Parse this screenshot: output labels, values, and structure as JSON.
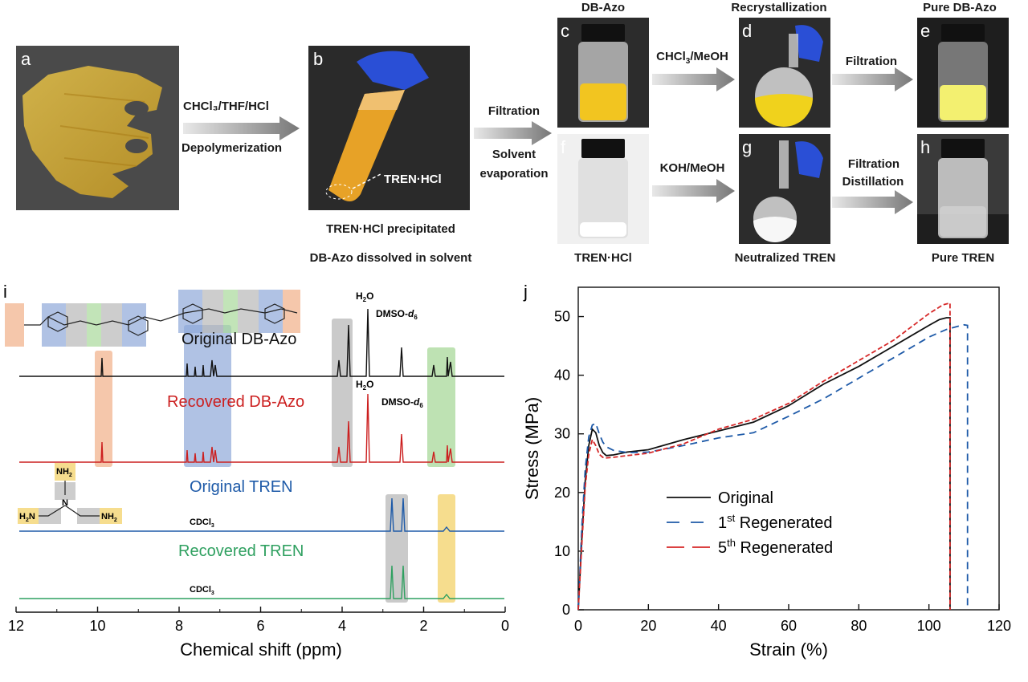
{
  "panels": {
    "a": {
      "letter": "a"
    },
    "b": {
      "letter": "b",
      "annotation": "TREN·HCl"
    },
    "c": {
      "letter": "c",
      "title": "DB-Azo"
    },
    "d": {
      "letter": "d",
      "title": "Recrystallization"
    },
    "e": {
      "letter": "e",
      "title": "Pure DB-Azo"
    },
    "f": {
      "letter": "f",
      "caption": "TREN·HCl"
    },
    "g": {
      "letter": "g",
      "caption": "Neutralized TREN"
    },
    "h": {
      "letter": "h",
      "caption": "Pure TREN"
    }
  },
  "arrows": {
    "a_to_b": {
      "top": "CHCl₃/THF/HCl",
      "bottom": "Depolymerization"
    },
    "b_to_cf": {
      "top": "Filtration",
      "bottom_1": "Solvent",
      "bottom_2": "evaporation"
    },
    "c_to_d": {
      "top": "CHCl",
      "top_sub": "3",
      "top_rest": "/MeOH"
    },
    "d_to_e": {
      "top": "Filtration"
    },
    "f_to_g": {
      "top": "KOH/MeOH"
    },
    "g_to_h": {
      "top_1": "Filtration",
      "top_2": "Distillation"
    }
  },
  "b_captions": {
    "line1": "TREN·HCl precipitated",
    "line2": "DB-Azo dissolved in solvent"
  },
  "nmr": {
    "panel_letter": "i",
    "xlabel": "Chemical shift (ppm)",
    "xticks": [
      "12",
      "10",
      "8",
      "6",
      "4",
      "2",
      "0"
    ],
    "spectra": [
      {
        "name": "Original DB-Azo",
        "color": "#111111"
      },
      {
        "name": "Recovered DB-Azo",
        "color": "#cc1f1f"
      },
      {
        "name": "Original TREN",
        "color": "#1e5aa8"
      },
      {
        "name": "Recovered TREN",
        "color": "#2fa060"
      }
    ],
    "solvent_labels": {
      "h2o": "H",
      "h2o_sub": "2",
      "h2o_rest": "O",
      "dmso": "DMSO-",
      "dmso_d": "d",
      "dmso_sub": "6",
      "cdcl3": "CDCl",
      "cdcl3_sub": "3"
    },
    "tren_labels": {
      "nh2": "NH",
      "nh2_sub": "2",
      "h2n": "H",
      "h2n_sub": "2",
      "h2n_rest": "N",
      "n": "N"
    },
    "highlight_colors": {
      "orange": "#f2b48f",
      "blue": "#8fa8d8",
      "grey": "#b8b8b8",
      "green": "#a8d89a",
      "yellow": "#f5d77a"
    }
  },
  "chart_data": {
    "type": "line",
    "panel_letter": "j",
    "xlabel": "Strain (%)",
    "ylabel": "Stress (MPa)",
    "xlim": [
      0,
      120
    ],
    "ylim": [
      0,
      55
    ],
    "xticks": [
      0,
      20,
      40,
      60,
      80,
      100,
      120
    ],
    "yticks": [
      0,
      10,
      20,
      30,
      40,
      50
    ],
    "legend_position": "center-left",
    "series": [
      {
        "name": "Original",
        "sup": "",
        "color": "#111111",
        "dash": "solid",
        "x": [
          0,
          1,
          2,
          3,
          4,
          5,
          6,
          7,
          8,
          10,
          14,
          20,
          30,
          40,
          50,
          60,
          70,
          80,
          90,
          100,
          103,
          105,
          106,
          106
        ],
        "y": [
          0,
          12,
          22,
          28,
          30.8,
          30.2,
          28,
          26.8,
          26.3,
          26.4,
          26.9,
          27.3,
          29.0,
          30.5,
          32.0,
          34.8,
          38.5,
          41.5,
          45.0,
          48.5,
          49.5,
          49.8,
          49.8,
          0
        ]
      },
      {
        "name": "1",
        "sup": "st",
        "rest": " Regenerated",
        "color": "#1e5aa8",
        "dash": "dashed",
        "x": [
          0,
          1,
          2,
          3,
          4,
          5,
          6,
          7,
          8,
          10,
          14,
          20,
          30,
          40,
          50,
          60,
          70,
          80,
          90,
          100,
          105,
          108,
          110,
          111,
          111
        ],
        "y": [
          0,
          14,
          24,
          29.5,
          31.5,
          31.8,
          30,
          28.6,
          27.8,
          27.2,
          26.8,
          26.9,
          28.0,
          29.3,
          30.2,
          33.0,
          36.0,
          39.5,
          43.0,
          46.5,
          47.8,
          48.3,
          48.6,
          48.5,
          0
        ]
      },
      {
        "name": "5",
        "sup": "th",
        "rest": " Regenerated",
        "color": "#d62828",
        "dash": "dashed",
        "x": [
          0,
          1,
          2,
          3,
          4,
          5,
          6,
          7,
          8,
          10,
          14,
          20,
          30,
          40,
          50,
          60,
          70,
          80,
          90,
          100,
          104,
          106,
          106
        ],
        "y": [
          0,
          11,
          21,
          26.5,
          29.0,
          28.0,
          26.5,
          26.0,
          25.9,
          26.0,
          26.3,
          26.7,
          28.3,
          30.8,
          32.5,
          35.2,
          39.0,
          42.5,
          46.0,
          50.5,
          52.0,
          52.3,
          0
        ]
      }
    ]
  }
}
